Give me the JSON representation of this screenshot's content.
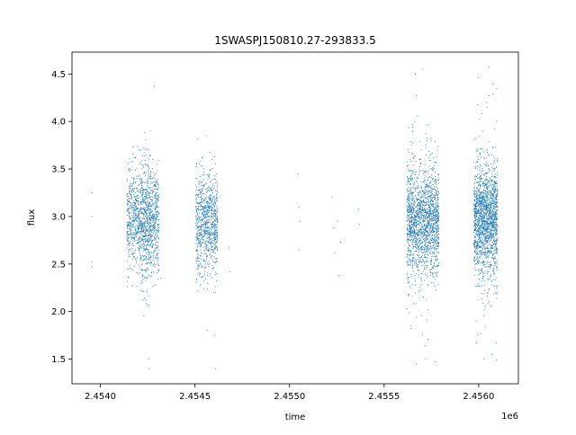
{
  "chart_data": {
    "type": "scatter",
    "title": "1SWASPJ150810.27-293833.5",
    "xlabel": "time",
    "ylabel": "flux",
    "x_offset_label": "1e6",
    "xlim": [
      2453850,
      2456210
    ],
    "ylim": [
      1.24,
      4.73
    ],
    "x_ticks": [
      2454000,
      2454500,
      2455000,
      2455500,
      2456000
    ],
    "x_tick_labels": [
      "2.4540",
      "2.4545",
      "2.4550",
      "2.4555",
      "2.4560"
    ],
    "y_ticks": [
      1.5,
      2.0,
      2.5,
      3.0,
      3.5,
      4.0,
      4.5
    ],
    "y_tick_labels": [
      "1.5",
      "2.0",
      "2.5",
      "3.0",
      "3.5",
      "4.0",
      "4.5"
    ],
    "grid": false,
    "legend": "none",
    "marker_color": "#1f77b4",
    "series": [
      {
        "values": [
          [
            2453955,
            3.25
          ],
          [
            2453955,
            3.0
          ],
          [
            2453955,
            2.52
          ],
          [
            2453955,
            2.47
          ],
          [
            2454160,
            2.85
          ],
          [
            2454165,
            3.1
          ],
          [
            2454170,
            2.6
          ],
          [
            2454180,
            2.95
          ],
          [
            2454190,
            3.3
          ],
          [
            2454200,
            2.4
          ],
          [
            2454210,
            3.05
          ],
          [
            2454220,
            2.75
          ],
          [
            2454230,
            3.45
          ],
          [
            2454240,
            3.7
          ],
          [
            2454250,
            2.2
          ],
          [
            2454255,
            1.5
          ],
          [
            2454260,
            1.4
          ],
          [
            2454265,
            3.9
          ],
          [
            2454270,
            2.9
          ],
          [
            2454285,
            4.37
          ],
          [
            2454290,
            3.15
          ],
          [
            2454300,
            2.6
          ],
          [
            2454310,
            3.2
          ],
          [
            2454320,
            2.35
          ],
          [
            2454520,
            3.0
          ],
          [
            2454530,
            2.65
          ],
          [
            2454540,
            3.3
          ],
          [
            2454550,
            2.85
          ],
          [
            2454560,
            3.85
          ],
          [
            2454565,
            1.8
          ],
          [
            2454570,
            3.1
          ],
          [
            2454580,
            2.5
          ],
          [
            2454590,
            3.6
          ],
          [
            2454600,
            2.2
          ],
          [
            2454605,
            1.75
          ],
          [
            2454610,
            1.4
          ],
          [
            2454620,
            2.95
          ],
          [
            2454680,
            2.67
          ],
          [
            2454685,
            2.42
          ],
          [
            2455045,
            3.45
          ],
          [
            2455050,
            3.1
          ],
          [
            2455055,
            2.95
          ],
          [
            2455050,
            2.65
          ],
          [
            2455225,
            3.2
          ],
          [
            2455235,
            2.88
          ],
          [
            2455240,
            2.62
          ],
          [
            2455255,
            2.95
          ],
          [
            2455260,
            2.38
          ],
          [
            2455270,
            2.73
          ],
          [
            2455365,
            3.08
          ],
          [
            2455370,
            2.92
          ],
          [
            2455630,
            3.1
          ],
          [
            2455640,
            2.8
          ],
          [
            2455650,
            3.4
          ],
          [
            2455660,
            2.5
          ],
          [
            2455665,
            4.5
          ],
          [
            2455670,
            1.45
          ],
          [
            2455680,
            3.0
          ],
          [
            2455690,
            3.6
          ],
          [
            2455700,
            2.4
          ],
          [
            2455705,
            4.55
          ],
          [
            2455710,
            3.2
          ],
          [
            2455720,
            1.5
          ],
          [
            2455730,
            2.9
          ],
          [
            2455740,
            3.5
          ],
          [
            2455750,
            2.3
          ],
          [
            2455760,
            3.1
          ],
          [
            2455770,
            1.47
          ],
          [
            2455780,
            3.7
          ],
          [
            2455790,
            2.7
          ],
          [
            2455980,
            3.0
          ],
          [
            2455990,
            2.6
          ],
          [
            2456000,
            3.4
          ],
          [
            2456010,
            2.4
          ],
          [
            2456020,
            3.9
          ],
          [
            2456030,
            1.5
          ],
          [
            2456040,
            4.2
          ],
          [
            2456050,
            3.2
          ],
          [
            2456055,
            4.57
          ],
          [
            2456060,
            2.8
          ],
          [
            2456070,
            1.55
          ],
          [
            2456080,
            3.5
          ],
          [
            2456090,
            2.2
          ],
          [
            2456095,
            4.0
          ]
        ]
      }
    ],
    "clusters": [
      {
        "x_range": [
          2454140,
          2454310
        ],
        "y_mean": 2.98,
        "y_sd": 0.26,
        "y_range": [
          2.25,
          3.75
        ],
        "n": 1200
      },
      {
        "x_range": [
          2454210,
          2454270
        ],
        "y_mean": 2.95,
        "y_sd": 0.45,
        "y_range": [
          1.4,
          3.9
        ],
        "n": 220
      },
      {
        "x_range": [
          2454505,
          2454620
        ],
        "y_mean": 2.93,
        "y_sd": 0.26,
        "y_range": [
          2.2,
          3.85
        ],
        "n": 900
      },
      {
        "x_range": [
          2455620,
          2455790
        ],
        "y_mean": 2.95,
        "y_sd": 0.27,
        "y_range": [
          2.0,
          3.8
        ],
        "n": 1600
      },
      {
        "x_range": [
          2455620,
          2455790
        ],
        "y_mean": 2.95,
        "y_sd": 0.55,
        "y_range": [
          1.45,
          4.55
        ],
        "n": 200
      },
      {
        "x_range": [
          2455975,
          2456100
        ],
        "y_mean": 2.97,
        "y_sd": 0.28,
        "y_range": [
          2.05,
          3.9
        ],
        "n": 1600
      },
      {
        "x_range": [
          2455975,
          2456100
        ],
        "y_mean": 2.97,
        "y_sd": 0.55,
        "y_range": [
          1.47,
          4.57
        ],
        "n": 200
      }
    ]
  }
}
